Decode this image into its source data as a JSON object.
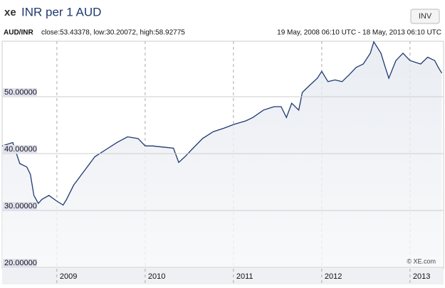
{
  "chart_data": {
    "type": "line",
    "logo": "xe",
    "title": "INR per 1 AUD",
    "button": "INV",
    "pair": "AUD/INR",
    "stats": "close:53.43378, low:30.20072, high:58.92775",
    "range": "19 May, 2008 06:10 UTC - 18 May, 2013 06:10 UTC",
    "credit": "© XE.com",
    "color": "#1f3a6e",
    "x": [
      2008.38,
      2008.5,
      2008.58,
      2008.66,
      2008.7,
      2008.74,
      2008.79,
      2008.83,
      2008.91,
      2008.99,
      2009.07,
      2009.11,
      2009.19,
      2009.31,
      2009.43,
      2009.56,
      2009.68,
      2009.8,
      2009.92,
      2010.0,
      2010.08,
      2010.2,
      2010.32,
      2010.38,
      2010.45,
      2010.53,
      2010.65,
      2010.77,
      2010.89,
      2011.01,
      2011.14,
      2011.22,
      2011.34,
      2011.46,
      2011.54,
      2011.6,
      2011.66,
      2011.74,
      2011.78,
      2011.86,
      2011.95,
      2012.0,
      2012.07,
      2012.15,
      2012.23,
      2012.31,
      2012.39,
      2012.47,
      2012.55,
      2012.59,
      2012.67,
      2012.72,
      2012.76,
      2012.84,
      2012.92,
      2013.0,
      2013.12,
      2013.2,
      2013.28,
      2013.32,
      2013.36
    ],
    "values": [
      40.6,
      41.2,
      37.5,
      36.9,
      35.6,
      31.9,
      30.5,
      31.2,
      31.9,
      31.0,
      30.2,
      31.2,
      33.7,
      36.2,
      38.7,
      40.0,
      41.2,
      42.2,
      41.9,
      40.6,
      40.6,
      40.4,
      40.2,
      37.7,
      38.7,
      40.0,
      41.9,
      43.1,
      43.7,
      44.4,
      45.0,
      45.6,
      46.9,
      47.5,
      47.5,
      45.6,
      48.1,
      46.9,
      50.0,
      51.2,
      52.5,
      53.7,
      51.9,
      52.2,
      51.9,
      53.1,
      54.4,
      55.0,
      56.9,
      58.9,
      56.9,
      54.4,
      52.5,
      55.6,
      56.9,
      55.6,
      55.0,
      56.2,
      55.6,
      54.4,
      53.4
    ],
    "xlim": [
      2008.38,
      2013.38
    ],
    "xticks": [
      2009,
      2010,
      2011,
      2012,
      2013
    ],
    "ylim": [
      19,
      59
    ],
    "yticks": [
      {
        "value": 20,
        "label": "20.00000"
      },
      {
        "value": 30,
        "label": "30.00000"
      },
      {
        "value": 40,
        "label": "40.00000"
      },
      {
        "value": 50,
        "label": "50.00000"
      }
    ],
    "grid": true
  }
}
